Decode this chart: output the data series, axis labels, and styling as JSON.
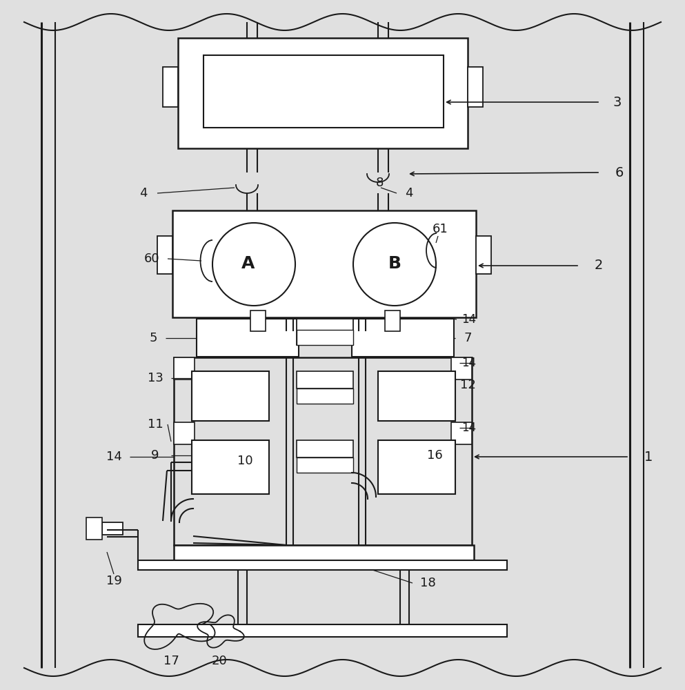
{
  "bg_color": "#e0e0e0",
  "lc": "#1a1a1a",
  "white": "#ffffff",
  "fig_w": 9.93,
  "fig_h": 10.0,
  "dpi": 100
}
